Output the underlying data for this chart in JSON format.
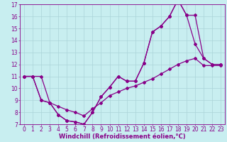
{
  "background_color": "#c8eef0",
  "grid_color": "#aad4d8",
  "line_color": "#880088",
  "marker": "D",
  "markersize": 2,
  "linewidth": 0.9,
  "xlim": [
    -0.5,
    23.5
  ],
  "ylim": [
    7,
    17
  ],
  "xticks": [
    0,
    1,
    2,
    3,
    4,
    5,
    6,
    7,
    8,
    9,
    10,
    11,
    12,
    13,
    14,
    15,
    16,
    17,
    18,
    19,
    20,
    21,
    22,
    23
  ],
  "yticks": [
    7,
    8,
    9,
    10,
    11,
    12,
    13,
    14,
    15,
    16,
    17
  ],
  "xlabel": "Windchill (Refroidissement éolien,°C)",
  "xlabel_fontsize": 6.0,
  "tick_fontsize": 5.5,
  "series1_x": [
    0,
    1,
    2,
    3,
    4,
    5,
    6,
    7,
    8,
    9,
    10,
    11,
    12,
    13,
    14,
    15,
    16,
    17,
    18,
    19,
    20,
    21,
    22,
    23
  ],
  "series1_y": [
    11,
    11,
    11,
    8.8,
    7.8,
    7.3,
    7.2,
    7.0,
    8.0,
    9.3,
    10.1,
    11.0,
    10.6,
    10.6,
    12.1,
    14.7,
    15.2,
    16.0,
    17.4,
    16.1,
    13.7,
    12.5,
    12.0,
    12.0
  ],
  "series2_x": [
    0,
    1,
    2,
    3,
    4,
    5,
    6,
    7,
    8,
    9,
    10,
    11,
    12,
    13,
    14,
    15,
    16,
    17,
    18,
    19,
    20,
    21,
    22,
    23
  ],
  "series2_y": [
    11,
    11,
    9.0,
    8.8,
    8.5,
    8.2,
    8.0,
    7.7,
    8.3,
    8.8,
    9.4,
    9.7,
    10.0,
    10.2,
    10.5,
    10.8,
    11.2,
    11.6,
    12.0,
    12.3,
    12.5,
    11.9,
    11.9,
    11.9
  ],
  "series3_x": [
    0,
    1,
    2,
    3,
    4,
    5,
    6,
    7,
    8,
    9,
    10,
    11,
    12,
    13,
    14,
    15,
    16,
    17,
    18,
    19,
    20,
    21,
    22,
    23
  ],
  "series3_y": [
    11,
    11,
    9.0,
    8.8,
    7.8,
    7.3,
    7.2,
    7.0,
    8.0,
    9.3,
    10.1,
    11.0,
    10.6,
    10.6,
    12.1,
    14.7,
    15.2,
    16.0,
    17.4,
    16.1,
    16.1,
    12.5,
    12.0,
    12.0
  ]
}
